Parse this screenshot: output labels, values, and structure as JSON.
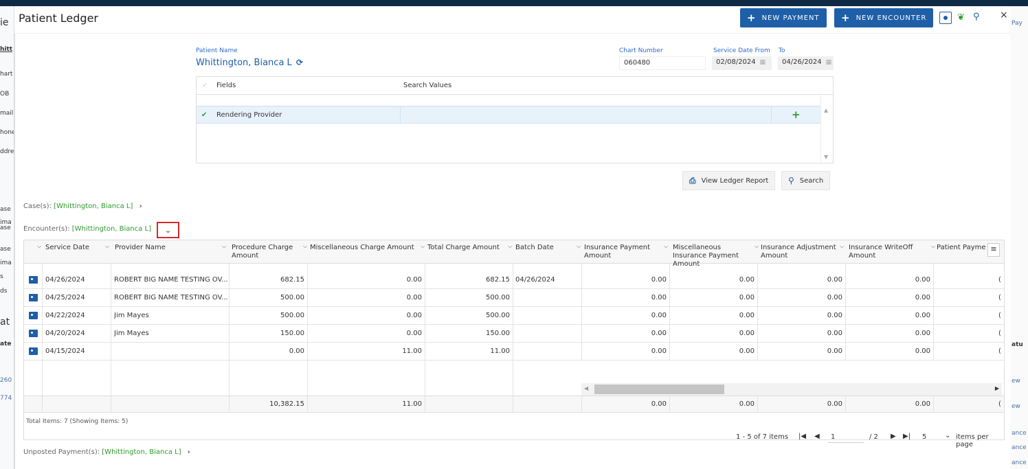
{
  "background": {
    "left_fragments": [
      "ie",
      "hitt",
      "hart",
      "OB",
      "mail",
      "hone",
      "ddre",
      "ase",
      "ima",
      "ase",
      "ase",
      "ima",
      "s",
      "ds",
      "at",
      "ate",
      "260",
      "774"
    ],
    "right_fragments": [
      "Pay",
      "ew",
      "ew",
      "ance",
      "ance",
      "ance",
      "atu"
    ]
  },
  "header": {
    "title": "Patient Ledger",
    "new_payment": "NEW PAYMENT",
    "new_encounter": "NEW ENCOUNTER",
    "close": "×"
  },
  "patient": {
    "name_label": "Patient Name",
    "name": "Whittington, Bianca L",
    "chart_label": "Chart Number",
    "chart_number": "060480",
    "date_from_label": "Service Date From",
    "date_to_label": "To",
    "date_from": "02/08/2024",
    "date_to": "04/26/2024"
  },
  "filters": {
    "col_fields": "Fields",
    "col_values": "Search Values",
    "rows": [
      {
        "field": "Rendering Provider",
        "value": ""
      }
    ]
  },
  "actions": {
    "view_report": "View Ledger Report",
    "search": "Search"
  },
  "sections": {
    "cases_label": "Case(s):",
    "cases_value": "[Whittington, Bianca L]",
    "encounters_label": "Encounter(s):",
    "encounters_value": "[Whittington, Bianca L]",
    "unposted_label": "Unposted Payment(s):",
    "unposted_value": "[Whittington, Bianca L]"
  },
  "grid": {
    "columns": [
      "Service Date",
      "Provider Name",
      "Procedure Charge Amount",
      "Miscellaneous Charge Amount",
      "Total Charge Amount",
      "Batch Date",
      "Insurance Payment Amount",
      "Miscellaneous Insurance Payment Amount",
      "Insurance Adjustment Amount",
      "Insurance WriteOff Amount",
      "Patient Payment A"
    ],
    "rows": [
      {
        "date": "04/26/2024",
        "provider": "ROBERT BIG NAME TESTING OV...",
        "proc": "682.15",
        "misc": "0.00",
        "total": "682.15",
        "batch": "04/26/2024",
        "ins_pay": "0.00",
        "misc_ins": "0.00",
        "ins_adj": "0.00",
        "ins_wo": "0.00",
        "pat": "("
      },
      {
        "date": "04/25/2024",
        "provider": "ROBERT BIG NAME TESTING OV...",
        "proc": "500.00",
        "misc": "0.00",
        "total": "500.00",
        "batch": "",
        "ins_pay": "0.00",
        "misc_ins": "0.00",
        "ins_adj": "0.00",
        "ins_wo": "0.00",
        "pat": "("
      },
      {
        "date": "04/22/2024",
        "provider": "Jim Mayes",
        "proc": "500.00",
        "misc": "0.00",
        "total": "500.00",
        "batch": "",
        "ins_pay": "0.00",
        "misc_ins": "0.00",
        "ins_adj": "0.00",
        "ins_wo": "0.00",
        "pat": "("
      },
      {
        "date": "04/20/2024",
        "provider": "Jim Mayes",
        "proc": "150.00",
        "misc": "0.00",
        "total": "150.00",
        "batch": "",
        "ins_pay": "0.00",
        "misc_ins": "0.00",
        "ins_adj": "0.00",
        "ins_wo": "0.00",
        "pat": "("
      },
      {
        "date": "04/15/2024",
        "provider": "",
        "proc": "0.00",
        "misc": "11.00",
        "total": "11.00",
        "batch": "",
        "ins_pay": "0.00",
        "misc_ins": "0.00",
        "ins_adj": "0.00",
        "ins_wo": "0.00",
        "pat": "("
      }
    ],
    "totals": {
      "proc": "10,382.15",
      "misc": "11.00",
      "ins_pay": "0.00",
      "misc_ins": "0.00",
      "ins_adj": "0.00",
      "ins_wo": "0.00",
      "pat": "("
    },
    "total_items": "Total Items: 7 (Showing Items: 5)",
    "pager": {
      "range": "1 - 5 of 7 items",
      "page": "1",
      "of_pages": "/ 2",
      "page_size": "5",
      "per_page": "items per page"
    }
  }
}
